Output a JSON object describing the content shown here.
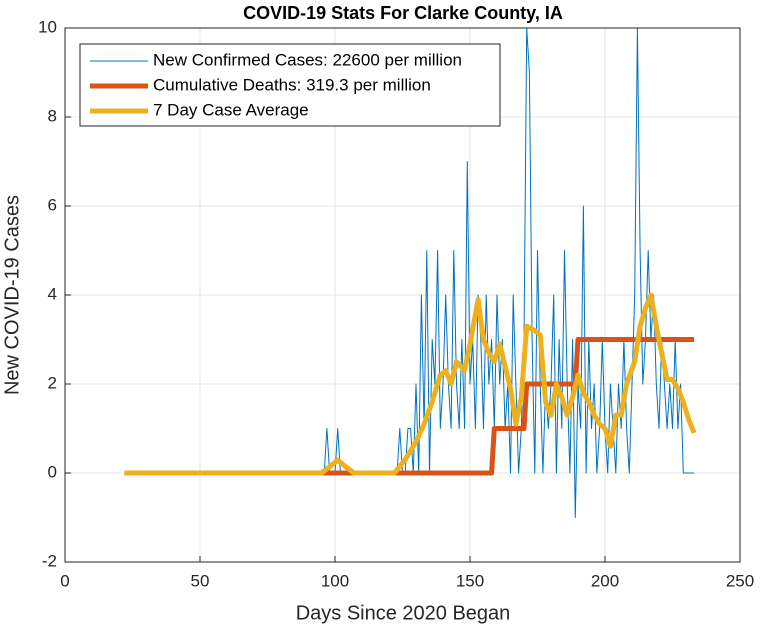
{
  "chart_data": {
    "type": "line",
    "title": "COVID-19 Stats For Clarke County, IA",
    "xlabel": "Days Since 2020 Began",
    "ylabel": "New COVID-19 Cases",
    "xlim": [
      0,
      250
    ],
    "xticks": [
      0,
      50,
      100,
      150,
      200,
      250
    ],
    "ylim": [
      -2,
      10
    ],
    "yticks": [
      -2,
      0,
      2,
      4,
      6,
      8,
      10
    ],
    "grid": true,
    "legend": "upper-left",
    "x": [
      22,
      23,
      24,
      25,
      26,
      27,
      28,
      29,
      30,
      31,
      32,
      33,
      34,
      35,
      36,
      37,
      38,
      39,
      40,
      41,
      42,
      43,
      44,
      45,
      46,
      47,
      48,
      49,
      50,
      51,
      52,
      53,
      54,
      55,
      56,
      57,
      58,
      59,
      60,
      61,
      62,
      63,
      64,
      65,
      66,
      67,
      68,
      69,
      70,
      71,
      72,
      73,
      74,
      75,
      76,
      77,
      78,
      79,
      80,
      81,
      82,
      83,
      84,
      85,
      86,
      87,
      88,
      89,
      90,
      91,
      92,
      93,
      94,
      95,
      96,
      97,
      98,
      99,
      100,
      101,
      102,
      103,
      104,
      105,
      106,
      107,
      108,
      109,
      110,
      111,
      112,
      113,
      114,
      115,
      116,
      117,
      118,
      119,
      120,
      121,
      122,
      123,
      124,
      125,
      126,
      127,
      128,
      129,
      130,
      131,
      132,
      133,
      134,
      135,
      136,
      137,
      138,
      139,
      140,
      141,
      142,
      143,
      144,
      145,
      146,
      147,
      148,
      149,
      150,
      151,
      152,
      153,
      154,
      155,
      156,
      157,
      158,
      159,
      160,
      161,
      162,
      163,
      164,
      165,
      166,
      167,
      168,
      169,
      170,
      171,
      172,
      173,
      174,
      175,
      176,
      177,
      178,
      179,
      180,
      181,
      182,
      183,
      184,
      185,
      186,
      187,
      188,
      189,
      190,
      191,
      192,
      193,
      194,
      195,
      196,
      197,
      198,
      199,
      200,
      201,
      202,
      203,
      204,
      205,
      206,
      207,
      208,
      209,
      210,
      211,
      212,
      213,
      214,
      215,
      216,
      217,
      218,
      219,
      220,
      221,
      222,
      223,
      224,
      225,
      226,
      227,
      228,
      229,
      230,
      231,
      232,
      233
    ],
    "series": [
      {
        "name": "New Confirmed Cases: 22600 per million",
        "color": "#0072BD",
        "width": 1,
        "values": [
          0,
          0,
          0,
          0,
          0,
          0,
          0,
          0,
          0,
          0,
          0,
          0,
          0,
          0,
          0,
          0,
          0,
          0,
          0,
          0,
          0,
          0,
          0,
          0,
          0,
          0,
          0,
          0,
          0,
          0,
          0,
          0,
          0,
          0,
          0,
          0,
          0,
          0,
          0,
          0,
          0,
          0,
          0,
          0,
          0,
          0,
          0,
          0,
          0,
          0,
          0,
          0,
          0,
          0,
          0,
          0,
          0,
          0,
          0,
          0,
          0,
          0,
          0,
          0,
          0,
          0,
          0,
          0,
          0,
          0,
          0,
          0,
          0,
          0,
          0,
          1,
          0,
          0,
          0,
          1,
          0,
          0,
          0,
          0,
          0,
          0,
          0,
          0,
          0,
          0,
          0,
          0,
          0,
          0,
          0,
          0,
          0,
          0,
          0,
          0,
          0,
          0,
          1,
          0,
          0,
          1,
          1,
          0,
          2,
          0,
          4,
          1,
          5,
          0,
          3,
          2,
          5,
          1,
          2,
          4,
          2,
          1,
          5,
          2,
          1,
          3,
          1,
          7,
          2,
          3,
          1,
          4,
          3,
          1,
          4,
          2,
          3,
          1,
          4,
          2,
          3,
          1,
          2,
          0,
          4,
          2,
          0,
          1,
          3,
          10,
          9,
          3,
          0,
          5,
          2,
          0,
          2,
          1,
          2,
          4,
          0,
          3,
          1,
          5,
          2,
          0,
          3,
          -1,
          2,
          1,
          6,
          0,
          3,
          1,
          2,
          0,
          1,
          3,
          1,
          0,
          2,
          1,
          0,
          2,
          1,
          3,
          1,
          0,
          2,
          4,
          10,
          5,
          2,
          3,
          5,
          3,
          4,
          2,
          1,
          3,
          2,
          1,
          2,
          1,
          3,
          1,
          2,
          0,
          0,
          0,
          0,
          0
        ]
      },
      {
        "name": "Cumulative Deaths: 319.3 per million",
        "color": "#D95319",
        "width": 5,
        "x": [
          22,
          158,
          159,
          170,
          171,
          189,
          190,
          233
        ],
        "values": [
          0,
          0,
          1,
          1,
          2,
          2,
          3,
          3
        ]
      },
      {
        "name": "7 Day Case Average",
        "color": "#EDB120",
        "width": 5,
        "x": [
          22,
          95,
          98,
          101,
          104,
          107,
          122,
          126,
          130,
          133,
          136,
          139,
          141,
          143,
          145,
          148,
          150,
          153,
          155,
          157,
          159,
          161,
          163,
          165,
          167,
          169,
          171,
          174,
          176,
          178,
          180,
          182,
          184,
          186,
          188,
          190,
          192,
          194,
          196,
          198,
          200,
          202,
          204,
          206,
          208,
          211,
          213,
          215,
          217,
          219,
          221,
          223,
          225,
          227,
          229,
          231,
          233
        ],
        "values": [
          0,
          0,
          0.14,
          0.29,
          0.14,
          0,
          0,
          0.3,
          0.7,
          1.1,
          1.6,
          2.2,
          2.3,
          2.0,
          2.5,
          2.3,
          2.9,
          3.9,
          3.0,
          2.7,
          2.5,
          2.9,
          2.4,
          1.9,
          1.1,
          1.7,
          3.3,
          3.2,
          3.1,
          1.6,
          1.3,
          2.0,
          1.7,
          1.3,
          1.7,
          2.2,
          1.8,
          1.6,
          1.3,
          1.1,
          1.0,
          0.6,
          1.3,
          1.3,
          2.0,
          2.5,
          3.3,
          3.7,
          4.0,
          3.3,
          2.7,
          2.1,
          2.1,
          1.9,
          1.6,
          1.2,
          0.9
        ]
      }
    ]
  }
}
